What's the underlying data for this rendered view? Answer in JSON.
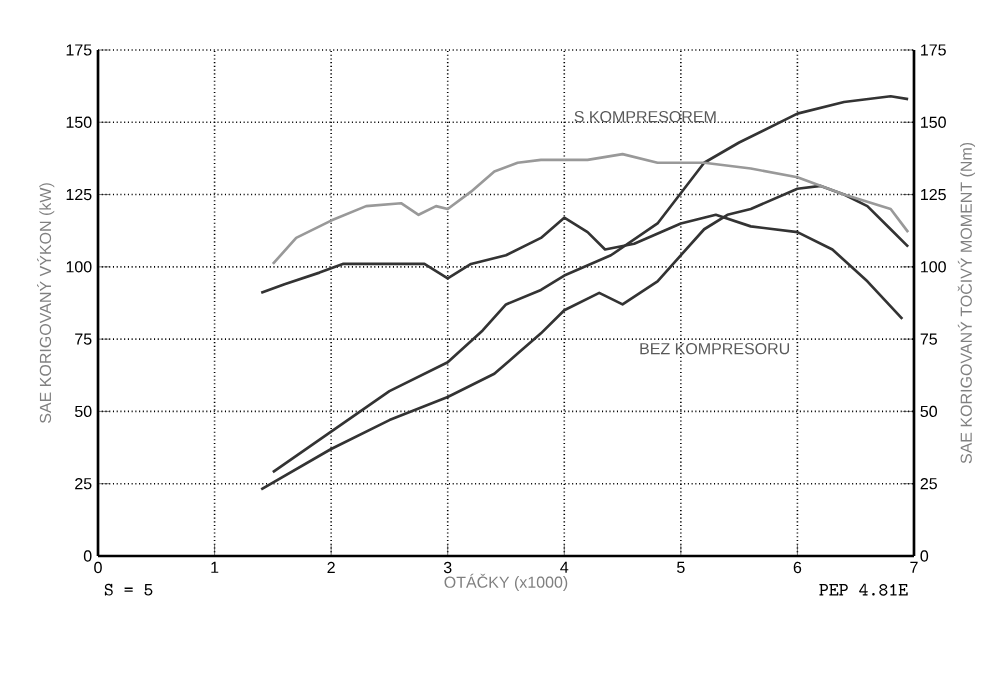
{
  "chart_data": {
    "type": "line",
    "xlabel": "OTÁČKY (x1000)",
    "ylabel": "SAE KORIGOVANÝ VÝKON (kW)",
    "y2label": "SAE KORIGOVANÝ TOČIVÝ MOMENT (Nm)",
    "xlim": [
      0,
      7
    ],
    "xticks": [
      0,
      1,
      2,
      3,
      4,
      5,
      6,
      7
    ],
    "ylim": [
      0,
      175
    ],
    "yticks": [
      0,
      25,
      50,
      75,
      100,
      125,
      150,
      175
    ],
    "y2lim": [
      0,
      175
    ],
    "y2ticks": [
      0,
      25,
      50,
      75,
      100,
      125,
      150,
      175
    ],
    "grid": true,
    "annotations": [
      "S KOMPRESOREM",
      "BEZ KOMPRESORU",
      "S = 5",
      "PEP 4.81E"
    ],
    "series": [
      {
        "color": "#999999",
        "axis": "y2",
        "x": [
          1.5,
          1.7,
          2.0,
          2.3,
          2.6,
          2.75,
          2.9,
          3.0,
          3.2,
          3.4,
          3.6,
          3.8,
          4.0,
          4.2,
          4.5,
          4.8,
          5.2,
          5.6,
          6.0,
          6.4,
          6.8,
          6.95
        ],
        "values": [
          101,
          110,
          116,
          121,
          122,
          118,
          121,
          120,
          126,
          133,
          136,
          137,
          137,
          137,
          139,
          136,
          136,
          134,
          131,
          125,
          120,
          112
        ]
      },
      {
        "color": "#333333",
        "axis": "y2",
        "x": [
          1.4,
          1.6,
          1.9,
          2.1,
          2.5,
          2.8,
          3.0,
          3.2,
          3.5,
          3.8,
          4.0,
          4.2,
          4.35,
          4.6,
          5.0,
          5.3,
          5.6,
          6.0,
          6.3,
          6.6,
          6.9
        ],
        "values": [
          91,
          94,
          98,
          101,
          101,
          101,
          96,
          101,
          104,
          110,
          117,
          112,
          106,
          108,
          115,
          118,
          114,
          112,
          106,
          95,
          82
        ]
      },
      {
        "color": "#333333",
        "x": [
          1.5,
          2.0,
          2.5,
          3.0,
          3.3,
          3.5,
          3.8,
          4.0,
          4.4,
          4.8,
          5.2,
          5.5,
          6.0,
          6.4,
          6.8,
          6.95
        ],
        "values": [
          29,
          43,
          57,
          67,
          78,
          87,
          92,
          97,
          104,
          115,
          136,
          143,
          153,
          157,
          159,
          158
        ]
      },
      {
        "color": "#333333",
        "x": [
          1.4,
          2.0,
          2.5,
          3.0,
          3.4,
          3.6,
          3.8,
          4.0,
          4.3,
          4.5,
          4.8,
          5.0,
          5.2,
          5.4,
          5.6,
          6.0,
          6.2,
          6.4,
          6.6,
          6.8,
          6.95
        ],
        "values": [
          23,
          37,
          47,
          55,
          63,
          70,
          77,
          85,
          91,
          87,
          95,
          104,
          113,
          118,
          120,
          127,
          128,
          125,
          121,
          113,
          107
        ]
      }
    ]
  }
}
